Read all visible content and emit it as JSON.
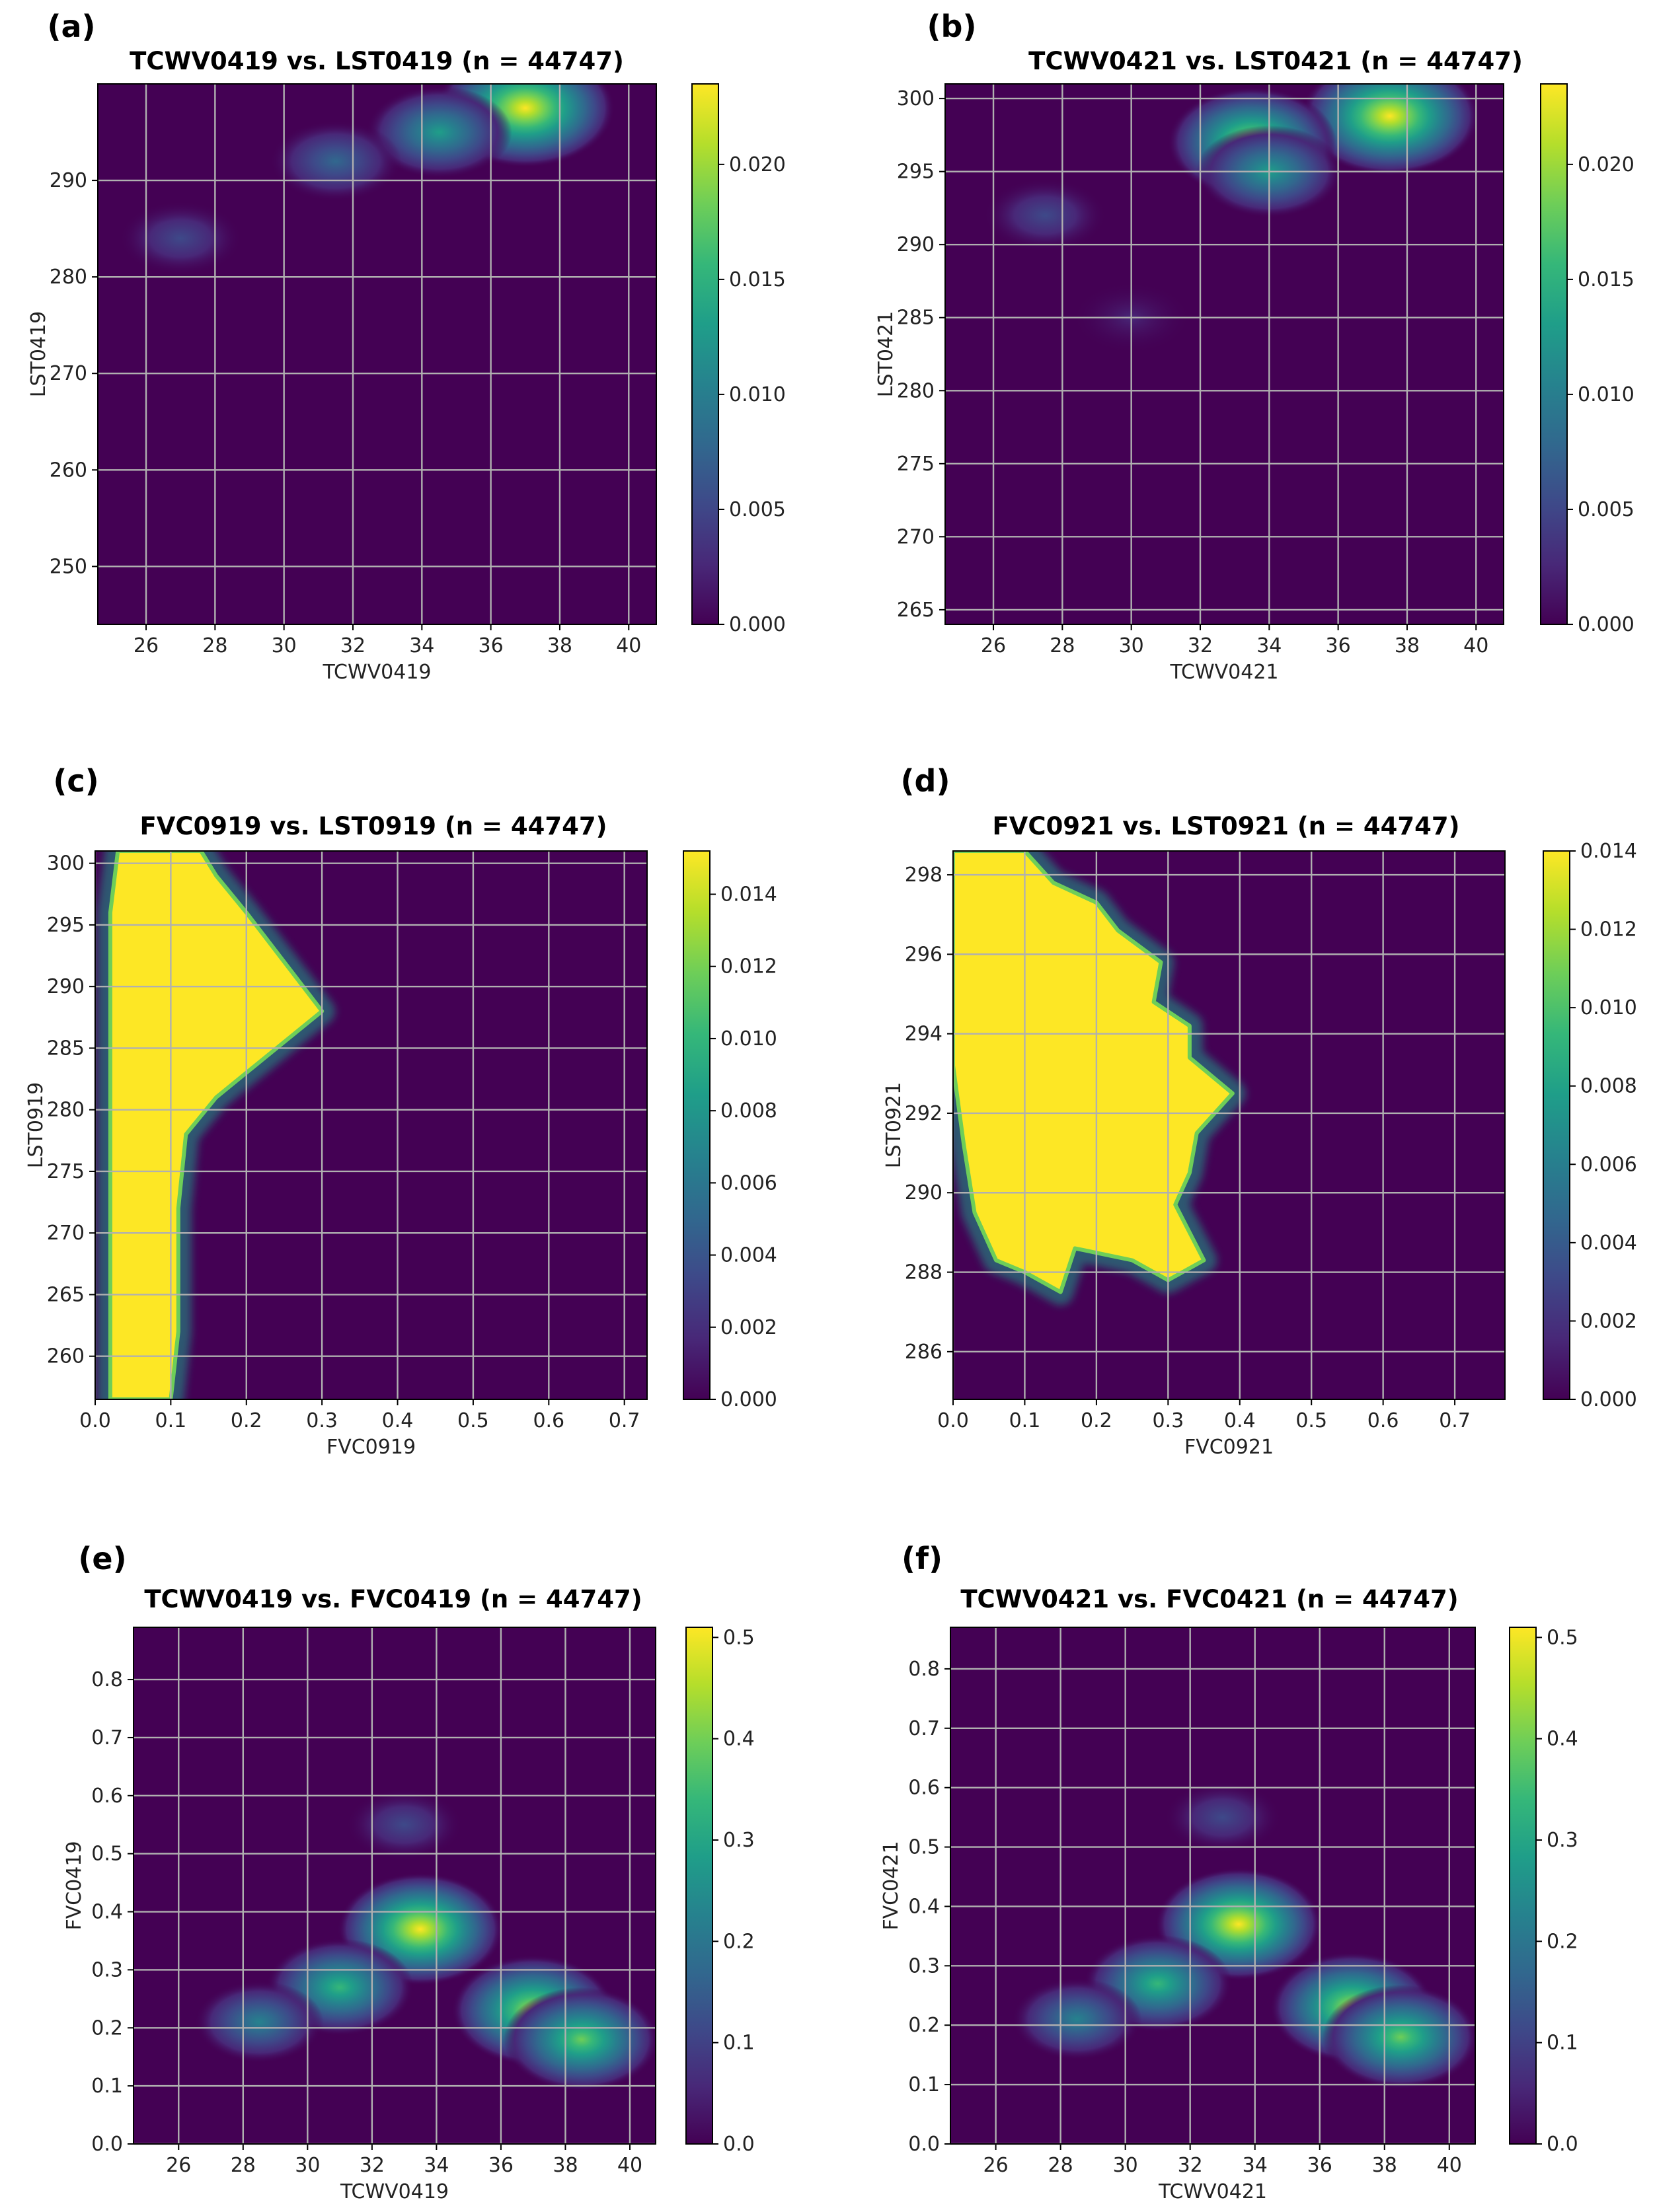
{
  "colors": {
    "colormap": [
      "#440154",
      "#482878",
      "#3e4989",
      "#31688e",
      "#26828e",
      "#1f9e89",
      "#35b779",
      "#6ece58",
      "#b5de2b",
      "#fde725"
    ],
    "background": "#440154",
    "grid": "#b0b0b0"
  },
  "chart_data": [
    {
      "panel_label": "(a)",
      "type": "heatmap",
      "title": "TCWV0419 vs. LST0419 (n = 44747)",
      "xlabel": "TCWV0419",
      "ylabel": "LST0419",
      "xlim": [
        24.6,
        40.8
      ],
      "ylim": [
        244,
        300
      ],
      "xticks": [
        26,
        28,
        30,
        32,
        34,
        36,
        38,
        40
      ],
      "yticks": [
        250,
        260,
        270,
        280,
        290
      ],
      "cbar_lim": [
        0,
        0.0235
      ],
      "cbar_ticks": [
        "0.000",
        "0.005",
        "0.010",
        "0.015",
        "0.020"
      ],
      "cbar_tick_values": [
        0,
        0.005,
        0.01,
        0.015,
        0.02
      ],
      "density_peaks": [
        {
          "x": 37.0,
          "y": 297.5,
          "value": 0.0235
        },
        {
          "x": 34.5,
          "y": 295.0,
          "value": 0.012
        },
        {
          "x": 31.5,
          "y": 292.0,
          "value": 0.007
        },
        {
          "x": 27.0,
          "y": 284.0,
          "value": 0.004
        }
      ]
    },
    {
      "panel_label": "(b)",
      "type": "heatmap",
      "title": "TCWV0421 vs. LST0421 (n = 44747)",
      "xlabel": "TCWV0421",
      "ylabel": "LST0421",
      "xlim": [
        24.6,
        40.8
      ],
      "ylim": [
        264,
        301
      ],
      "xticks": [
        26,
        28,
        30,
        32,
        34,
        36,
        38,
        40
      ],
      "yticks": [
        265,
        270,
        275,
        280,
        285,
        290,
        295,
        300
      ],
      "cbar_lim": [
        0,
        0.0235
      ],
      "cbar_ticks": [
        "0.000",
        "0.005",
        "0.010",
        "0.015",
        "0.020"
      ],
      "cbar_tick_values": [
        0,
        0.005,
        0.01,
        0.015,
        0.02
      ],
      "density_peaks": [
        {
          "x": 37.5,
          "y": 298.8,
          "value": 0.0235
        },
        {
          "x": 33.5,
          "y": 297.0,
          "value": 0.02
        },
        {
          "x": 34.0,
          "y": 295.0,
          "value": 0.012
        },
        {
          "x": 27.5,
          "y": 292.0,
          "value": 0.004
        },
        {
          "x": 30.0,
          "y": 285.0,
          "value": 0.003
        }
      ]
    },
    {
      "panel_label": "(c)",
      "type": "heatmap",
      "title": "FVC0919 vs. LST0919 (n = 44747)",
      "xlabel": "FVC0919",
      "ylabel": "LST0919",
      "xlim": [
        0,
        0.73
      ],
      "ylim": [
        256.5,
        301
      ],
      "xticks": [
        "0.0",
        "0.1",
        "0.2",
        "0.3",
        "0.4",
        "0.5",
        "0.6",
        "0.7"
      ],
      "xtick_values": [
        0,
        0.1,
        0.2,
        0.3,
        0.4,
        0.5,
        0.6,
        0.7
      ],
      "yticks": [
        260,
        265,
        270,
        275,
        280,
        285,
        290,
        295,
        300
      ],
      "cbar_lim": [
        0,
        0.0152
      ],
      "cbar_ticks": [
        "0.000",
        "0.002",
        "0.004",
        "0.006",
        "0.008",
        "0.010",
        "0.012",
        "0.014"
      ],
      "cbar_tick_values": [
        0,
        0.002,
        0.004,
        0.006,
        0.008,
        0.01,
        0.012,
        0.014
      ],
      "saturated_region": [
        [
          0.02,
          256.5
        ],
        [
          0.1,
          256.5
        ],
        [
          0.11,
          262
        ],
        [
          0.11,
          272
        ],
        [
          0.12,
          278
        ],
        [
          0.16,
          281
        ],
        [
          0.24,
          285
        ],
        [
          0.3,
          288
        ],
        [
          0.25,
          292
        ],
        [
          0.2,
          296
        ],
        [
          0.16,
          299
        ],
        [
          0.14,
          301
        ],
        [
          0.03,
          301
        ],
        [
          0.02,
          296
        ],
        [
          0.02,
          262
        ]
      ]
    },
    {
      "panel_label": "(d)",
      "type": "heatmap",
      "title": "FVC0921 vs. LST0921 (n = 44747)",
      "xlabel": "FVC0921",
      "ylabel": "LST0921",
      "xlim": [
        0,
        0.77
      ],
      "ylim": [
        284.8,
        298.6
      ],
      "xticks": [
        "0.0",
        "0.1",
        "0.2",
        "0.3",
        "0.4",
        "0.5",
        "0.6",
        "0.7"
      ],
      "xtick_values": [
        0,
        0.1,
        0.2,
        0.3,
        0.4,
        0.5,
        0.6,
        0.7
      ],
      "yticks": [
        286,
        288,
        290,
        292,
        294,
        296,
        298
      ],
      "cbar_lim": [
        0,
        0.014
      ],
      "cbar_ticks": [
        "0.000",
        "0.002",
        "0.004",
        "0.006",
        "0.008",
        "0.010",
        "0.012",
        "0.014"
      ],
      "cbar_tick_values": [
        0,
        0.002,
        0.004,
        0.006,
        0.008,
        0.01,
        0.012,
        0.014
      ],
      "saturated_region": [
        [
          0.0,
          298.6
        ],
        [
          0.1,
          298.6
        ],
        [
          0.14,
          297.8
        ],
        [
          0.2,
          297.3
        ],
        [
          0.23,
          296.6
        ],
        [
          0.29,
          295.8
        ],
        [
          0.28,
          294.8
        ],
        [
          0.33,
          294.2
        ],
        [
          0.33,
          293.4
        ],
        [
          0.39,
          292.5
        ],
        [
          0.34,
          291.5
        ],
        [
          0.33,
          290.5
        ],
        [
          0.31,
          289.7
        ],
        [
          0.35,
          288.3
        ],
        [
          0.3,
          287.8
        ],
        [
          0.25,
          288.3
        ],
        [
          0.17,
          288.6
        ],
        [
          0.15,
          287.5
        ],
        [
          0.1,
          288.0
        ],
        [
          0.06,
          288.3
        ],
        [
          0.03,
          289.5
        ],
        [
          0.015,
          291.2
        ],
        [
          0.0,
          293.2
        ]
      ]
    },
    {
      "panel_label": "(e)",
      "type": "heatmap",
      "title": "TCWV0419 vs. FVC0419 (n = 44747)",
      "xlabel": "TCWV0419",
      "ylabel": "FVC0419",
      "xlim": [
        24.6,
        40.8
      ],
      "ylim": [
        0,
        0.89
      ],
      "xticks": [
        26,
        28,
        30,
        32,
        34,
        36,
        38,
        40
      ],
      "yticks": [
        "0.0",
        "0.1",
        "0.2",
        "0.3",
        "0.4",
        "0.5",
        "0.6",
        "0.7",
        "0.8"
      ],
      "ytick_values": [
        0,
        0.1,
        0.2,
        0.3,
        0.4,
        0.5,
        0.6,
        0.7,
        0.8
      ],
      "cbar_lim": [
        0,
        0.51
      ],
      "cbar_ticks": [
        "0.0",
        "0.1",
        "0.2",
        "0.3",
        "0.4",
        "0.5"
      ],
      "cbar_tick_values": [
        0,
        0.1,
        0.2,
        0.3,
        0.4,
        0.5
      ],
      "density_peaks": [
        {
          "x": 33.5,
          "y": 0.37,
          "value": 0.5
        },
        {
          "x": 37.0,
          "y": 0.23,
          "value": 0.48
        },
        {
          "x": 38.5,
          "y": 0.18,
          "value": 0.42
        },
        {
          "x": 31.0,
          "y": 0.27,
          "value": 0.35
        },
        {
          "x": 28.5,
          "y": 0.21,
          "value": 0.2
        },
        {
          "x": 33.0,
          "y": 0.55,
          "value": 0.1
        }
      ]
    },
    {
      "panel_label": "(f)",
      "type": "heatmap",
      "title": "TCWV0421 vs. FVC0421 (n = 44747)",
      "xlabel": "TCWV0421",
      "ylabel": "FVC0421",
      "xlim": [
        24.6,
        40.8
      ],
      "ylim": [
        0,
        0.87
      ],
      "xticks": [
        26,
        28,
        30,
        32,
        34,
        36,
        38,
        40
      ],
      "yticks": [
        "0.0",
        "0.1",
        "0.2",
        "0.3",
        "0.4",
        "0.5",
        "0.6",
        "0.7",
        "0.8"
      ],
      "ytick_values": [
        0,
        0.1,
        0.2,
        0.3,
        0.4,
        0.5,
        0.6,
        0.7,
        0.8
      ],
      "cbar_lim": [
        0,
        0.51
      ],
      "cbar_ticks": [
        "0.0",
        "0.1",
        "0.2",
        "0.3",
        "0.4",
        "0.5"
      ],
      "cbar_tick_values": [
        0,
        0.1,
        0.2,
        0.3,
        0.4,
        0.5
      ],
      "density_peaks": [
        {
          "x": 33.5,
          "y": 0.37,
          "value": 0.5
        },
        {
          "x": 37.0,
          "y": 0.23,
          "value": 0.48
        },
        {
          "x": 38.5,
          "y": 0.18,
          "value": 0.42
        },
        {
          "x": 31.0,
          "y": 0.27,
          "value": 0.35
        },
        {
          "x": 28.5,
          "y": 0.21,
          "value": 0.2
        },
        {
          "x": 33.0,
          "y": 0.55,
          "value": 0.1
        }
      ]
    }
  ]
}
